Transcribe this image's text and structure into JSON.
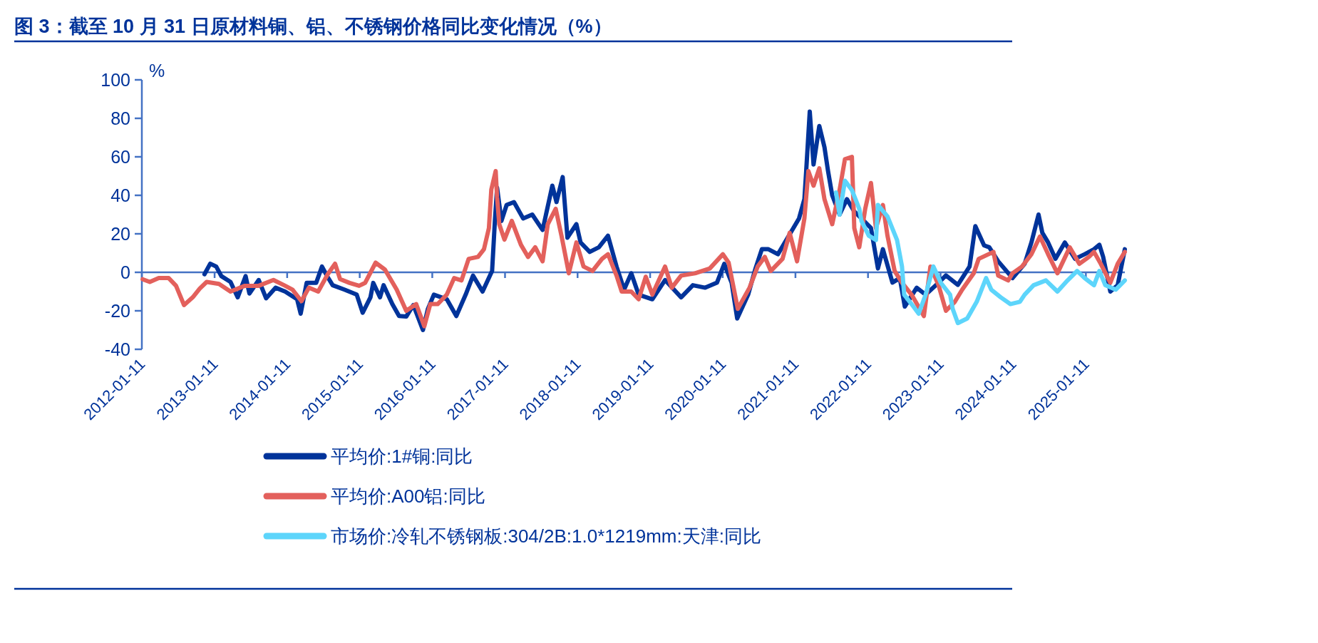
{
  "chart_data": {
    "type": "line",
    "title": "图 3：截至 10 月 31 日原材料铜、铝、不锈钢价格同比变化情况（%）",
    "ylabel": "%",
    "xlim": [
      "2012-01-11",
      "2025-07-26"
    ],
    "xticks": [
      "2012-01-11",
      "2013-01-11",
      "2014-01-11",
      "2015-01-11",
      "2016-01-11",
      "2017-01-11",
      "2018-01-11",
      "2019-01-11",
      "2020-01-11",
      "2021-01-11",
      "2022-01-11",
      "2023-01-11",
      "2024-01-11",
      "2025-01-11"
    ],
    "ylim": [
      -40,
      100
    ],
    "yticks": [
      -40,
      -20,
      0,
      20,
      40,
      60,
      80,
      100
    ],
    "legend": "bottom",
    "line_style": "solid",
    "ref_lines": [
      {
        "axis": "y",
        "value": 0,
        "color": "#4472c4"
      }
    ],
    "series": [
      {
        "name": "平均价:1#铜:同比",
        "color": "#00339a",
        "x": [
          "2012-11-21",
          "2012-12-20",
          "2013-01-19",
          "2013-02-14",
          "2013-04-01",
          "2013-05-07",
          "2013-06-16",
          "2013-07-05",
          "2013-08-21",
          "2013-09-27",
          "2013-11-14",
          "2014-01-01",
          "2014-03-02",
          "2014-03-20",
          "2014-04-19",
          "2014-06-06",
          "2014-07-05",
          "2014-08-03",
          "2014-08-28",
          "2014-10-26",
          "2014-12-27",
          "2015-01-26",
          "2015-03-06",
          "2015-03-20",
          "2015-04-23",
          "2015-05-11",
          "2015-06-24",
          "2015-07-28",
          "2015-09-02",
          "2015-10-08",
          "2015-11-25",
          "2015-12-20",
          "2016-01-19",
          "2016-03-24",
          "2016-05-11",
          "2016-06-27",
          "2016-08-03",
          "2016-09-20",
          "2016-11-07",
          "2016-11-21",
          "2016-12-02",
          "2016-12-24",
          "2017-01-19",
          "2017-02-25",
          "2017-04-12",
          "2017-05-28",
          "2017-07-19",
          "2017-09-06",
          "2017-09-27",
          "2017-10-28",
          "2017-11-21",
          "2018-01-05",
          "2018-01-26",
          "2018-03-13",
          "2018-04-28",
          "2018-06-13",
          "2018-07-26",
          "2018-09-02",
          "2018-10-08",
          "2018-11-14",
          "2019-01-22",
          "2019-03-27",
          "2019-06-16",
          "2019-08-14",
          "2019-10-15",
          "2019-12-13",
          "2020-01-19",
          "2020-02-25",
          "2020-03-24",
          "2020-05-18",
          "2020-06-24",
          "2020-07-26",
          "2020-08-28",
          "2020-10-15",
          "2020-12-24",
          "2021-01-29",
          "2021-02-25",
          "2021-03-06",
          "2021-03-24",
          "2021-04-12",
          "2021-05-11",
          "2021-06-06",
          "2021-06-24",
          "2021-07-15",
          "2021-08-21",
          "2021-09-27",
          "2021-11-03",
          "2021-12-09",
          "2022-01-26",
          "2022-03-02",
          "2022-03-27",
          "2022-05-14",
          "2022-06-20",
          "2022-07-15",
          "2022-09-13",
          "2022-10-28",
          "2023-01-01",
          "2023-02-07",
          "2023-04-08",
          "2023-06-06",
          "2023-07-05",
          "2023-08-18",
          "2023-09-13",
          "2023-10-28",
          "2024-01-08",
          "2024-03-09",
          "2024-04-12",
          "2024-05-18",
          "2024-06-06",
          "2024-07-05",
          "2024-08-11",
          "2024-09-27",
          "2024-11-18",
          "2025-01-05",
          "2025-02-21",
          "2025-03-20",
          "2025-04-08",
          "2025-05-14",
          "2025-06-20",
          "2025-07-26"
        ],
        "values": [
          -1,
          4.5,
          3,
          -2,
          -5,
          -13,
          -2,
          -11,
          -4,
          -13.5,
          -8,
          -10,
          -14,
          -21.5,
          -5.5,
          -5.5,
          3,
          -2.5,
          -6.7,
          -9,
          -11.6,
          -21,
          -13,
          -5.5,
          -13,
          -6.7,
          -16.5,
          -22.7,
          -23,
          -17,
          -30,
          -19,
          -11.6,
          -14,
          -22.7,
          -11.6,
          -1.7,
          -10,
          0.7,
          26.7,
          44,
          26.7,
          35,
          36.5,
          28,
          30,
          22,
          45,
          36.5,
          49.5,
          18,
          25,
          15.5,
          10.6,
          13,
          19,
          3,
          -9,
          -0.5,
          -11.6,
          -14,
          -4,
          -13,
          -6.7,
          -8,
          -5.4,
          4.4,
          -5.4,
          -24,
          -11.6,
          2,
          12,
          12,
          9.4,
          21.7,
          28,
          38,
          52.6,
          83.5,
          56,
          76,
          65,
          52.6,
          40,
          30,
          38,
          31.6,
          28,
          23,
          2,
          12,
          -5.3,
          -3,
          -17.8,
          -8,
          -11.6,
          -5.4,
          -1.6,
          -6.5,
          3,
          24,
          14,
          13,
          5.7,
          -3,
          4.4,
          15.5,
          30,
          20.5,
          15.5,
          7,
          15.5,
          7,
          9.4,
          12,
          14.3,
          8,
          -10,
          -6.7,
          12
        ]
      },
      {
        "name": "平均价:A00铝:同比",
        "color": "#e3605c",
        "x": [
          "2012-01-15",
          "2012-02-20",
          "2012-04-05",
          "2012-05-25",
          "2012-07-01",
          "2012-08-10",
          "2012-09-23",
          "2012-10-28",
          "2012-12-02",
          "2013-02-02",
          "2013-04-01",
          "2013-06-12",
          "2013-08-21",
          "2013-11-03",
          "2014-01-01",
          "2014-02-07",
          "2014-03-24",
          "2014-04-30",
          "2014-06-16",
          "2014-08-03",
          "2014-09-09",
          "2014-10-04",
          "2014-11-21",
          "2015-01-08",
          "2015-02-07",
          "2015-04-01",
          "2015-05-18",
          "2015-07-16",
          "2015-09-02",
          "2015-10-22",
          "2015-12-02",
          "2016-01-01",
          "2016-02-07",
          "2016-03-24",
          "2016-04-30",
          "2016-06-06",
          "2016-07-12",
          "2016-08-28",
          "2016-09-27",
          "2016-10-22",
          "2016-11-03",
          "2016-11-25",
          "2016-12-02",
          "2016-12-13",
          "2017-01-08",
          "2017-02-14",
          "2017-04-01",
          "2017-05-07",
          "2017-06-12",
          "2017-07-19",
          "2017-08-14",
          "2017-09-23",
          "2017-10-22",
          "2017-11-28",
          "2018-01-05",
          "2018-02-10",
          "2018-03-27",
          "2018-05-14",
          "2018-06-13",
          "2018-07-26",
          "2018-08-21",
          "2018-10-08",
          "2018-11-14",
          "2018-12-20",
          "2019-01-22",
          "2019-03-27",
          "2019-04-30",
          "2019-06-16",
          "2019-08-25",
          "2019-11-07",
          "2020-01-12",
          "2020-02-10",
          "2020-03-27",
          "2020-05-25",
          "2020-07-05",
          "2020-08-10",
          "2020-09-09",
          "2020-11-07",
          "2020-12-13",
          "2021-01-19",
          "2021-02-25",
          "2021-03-17",
          "2021-04-12",
          "2021-05-11",
          "2021-06-06",
          "2021-07-15",
          "2021-08-21",
          "2021-09-17",
          "2021-10-22",
          "2021-11-03",
          "2021-11-28",
          "2021-12-28",
          "2022-01-26",
          "2022-02-20",
          "2022-03-27",
          "2022-04-19",
          "2022-05-25",
          "2022-07-01",
          "2022-08-18",
          "2022-10-19",
          "2022-11-21",
          "2023-01-01",
          "2023-02-07",
          "2023-03-24",
          "2023-04-30",
          "2023-06-27",
          "2023-07-22",
          "2023-10-04",
          "2023-10-28",
          "2023-12-17",
          "2024-01-08",
          "2024-02-25",
          "2024-04-12",
          "2024-05-25",
          "2024-07-05",
          "2024-08-21",
          "2024-10-22",
          "2024-12-09",
          "2025-01-26",
          "2025-02-21",
          "2025-03-27",
          "2025-05-14",
          "2025-06-20",
          "2025-07-26"
        ],
        "values": [
          -3.6,
          -5,
          -3,
          -3,
          -7,
          -17,
          -13,
          -8.5,
          -5,
          -6,
          -10,
          -7,
          -7,
          -4,
          -7,
          -9,
          -15,
          -8,
          -10,
          -1,
          4.5,
          -3.5,
          -5.5,
          -7,
          -5.5,
          5,
          1.4,
          -9,
          -20,
          -16.5,
          -28,
          -16.5,
          -16.5,
          -11.6,
          -3,
          -4.2,
          7,
          8,
          12,
          23,
          43,
          52.6,
          39,
          25,
          17,
          26.7,
          14.3,
          8,
          13,
          5.7,
          25,
          33,
          19,
          -0.5,
          15.5,
          3,
          0.7,
          7,
          9.4,
          -1.7,
          -10,
          -10,
          -14,
          -2.3,
          -11.6,
          3,
          -8,
          -1.7,
          -0.5,
          2,
          9.4,
          5,
          -19,
          -8,
          3,
          8,
          0.7,
          7,
          20.5,
          5.7,
          28,
          52.6,
          45,
          54,
          38,
          25,
          42.7,
          58.8,
          60,
          23,
          13,
          33,
          46.4,
          23,
          35,
          19,
          0.7,
          -5.4,
          -11.6,
          -22.7,
          3,
          -6.7,
          -20,
          -15.3,
          -9,
          -0.5,
          7,
          10.6,
          -1.7,
          -4.2,
          -0.5,
          3,
          9.4,
          18.6,
          9.4,
          -0.5,
          13,
          4.4,
          8,
          10.6,
          4.4,
          -5.4,
          4.4,
          10.6
        ]
      },
      {
        "name": "市场价:冷轧不锈钢板:304/2B:1.0*1219mm:天津:同比",
        "color": "#5dd5fb",
        "x": [
          "2021-08-03",
          "2021-08-21",
          "2021-09-17",
          "2021-10-22",
          "2021-11-28",
          "2021-12-09",
          "2022-01-15",
          "2022-02-20",
          "2022-03-02",
          "2022-04-19",
          "2022-06-06",
          "2022-07-01",
          "2022-07-12",
          "2022-08-18",
          "2022-09-23",
          "2022-10-28",
          "2022-12-06",
          "2023-01-12",
          "2023-02-28",
          "2023-03-13",
          "2023-04-08",
          "2023-05-25",
          "2023-07-12",
          "2023-08-28",
          "2023-09-23",
          "2023-11-10",
          "2023-12-28",
          "2024-02-14",
          "2024-03-09",
          "2024-04-23",
          "2024-06-24",
          "2024-08-21",
          "2024-10-11",
          "2024-11-28",
          "2025-01-05",
          "2025-02-21",
          "2025-03-20",
          "2025-04-19",
          "2025-06-10",
          "2025-07-26"
        ],
        "values": [
          41.5,
          30,
          47.6,
          42.7,
          33,
          26.7,
          19,
          16.8,
          35,
          29,
          16.8,
          3,
          -11.6,
          -16.5,
          -21.5,
          -11.6,
          3,
          -5.4,
          -11.6,
          -19,
          -26.4,
          -24,
          -15.3,
          -3,
          -9,
          -13,
          -16.5,
          -15.3,
          -11.6,
          -6.7,
          -4.2,
          -10,
          -4.2,
          0.7,
          -3,
          -6.7,
          0.7,
          -6.7,
          -9,
          -4.2
        ]
      }
    ]
  }
}
